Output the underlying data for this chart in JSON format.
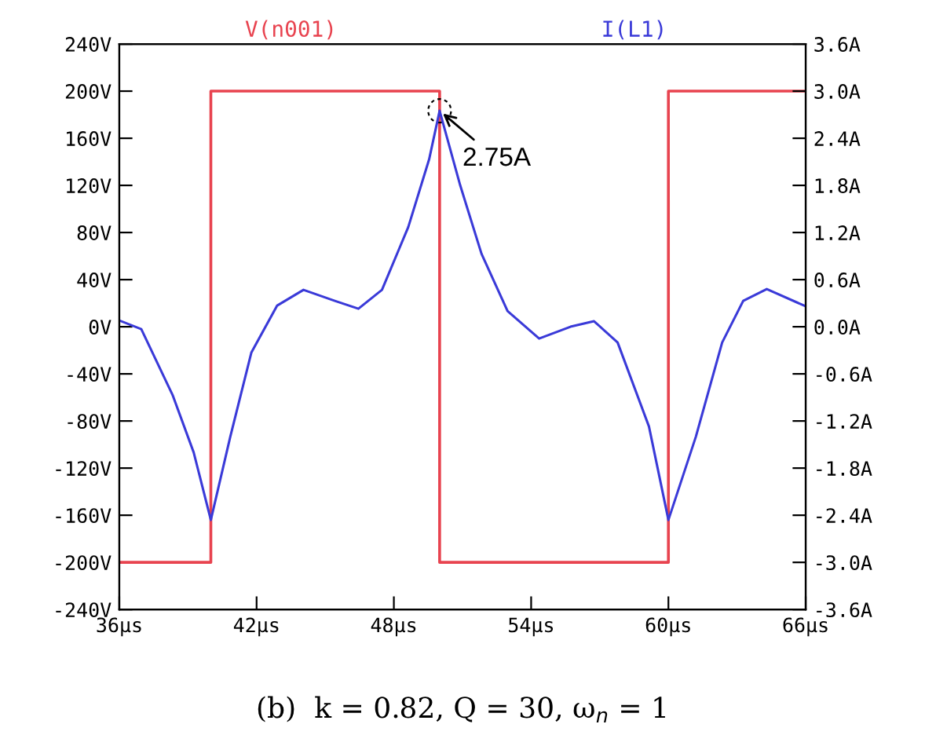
{
  "chart_data": {
    "type": "line",
    "series": [
      {
        "name": "V(n001)",
        "type": "step",
        "color": "#e8434f",
        "x": [
          36,
          40,
          50,
          60,
          66
        ],
        "values": [
          -200,
          200,
          -200,
          200,
          200
        ]
      },
      {
        "name": "I(L1)",
        "type": "line",
        "axis": "y2",
        "color": "#3a3ad8",
        "x": [
          36,
          36.96,
          38.33,
          39.25,
          40,
          40.85,
          41.77,
          42.9,
          44.05,
          45.42,
          46.45,
          47.48,
          48.63,
          49.54,
          50,
          50.9,
          51.83,
          52.97,
          54.35,
          55.72,
          56.75,
          57.78,
          59.15,
          60,
          61.2,
          62.35,
          63.27,
          64.3,
          66
        ],
        "values": [
          0.08,
          -0.03,
          -0.87,
          -1.6,
          -2.46,
          -1.4,
          -0.33,
          0.27,
          0.47,
          0.33,
          0.23,
          0.47,
          1.27,
          2.13,
          2.75,
          1.8,
          0.93,
          0.2,
          -0.15,
          0.0,
          0.07,
          -0.2,
          -1.27,
          -2.46,
          -1.4,
          -0.2,
          0.33,
          0.48,
          0.26
        ]
      }
    ],
    "xlim": [
      36,
      66
    ],
    "xticks": [
      {
        "value": 36,
        "label": "36µs"
      },
      {
        "value": 42,
        "label": "42µs"
      },
      {
        "value": 48,
        "label": "48µs"
      },
      {
        "value": 54,
        "label": "54µs"
      },
      {
        "value": 60,
        "label": "60µs"
      },
      {
        "value": 66,
        "label": "66µs"
      }
    ],
    "ylim": [
      -240,
      240
    ],
    "yticks": [
      {
        "value": -240,
        "label": "-240V"
      },
      {
        "value": -200,
        "label": "-200V"
      },
      {
        "value": -160,
        "label": "-160V"
      },
      {
        "value": -120,
        "label": "-120V"
      },
      {
        "value": -80,
        "label": "-80V"
      },
      {
        "value": -40,
        "label": "-40V"
      },
      {
        "value": 0,
        "label": "0V"
      },
      {
        "value": 40,
        "label": "40V"
      },
      {
        "value": 80,
        "label": "80V"
      },
      {
        "value": 120,
        "label": "120V"
      },
      {
        "value": 160,
        "label": "160V"
      },
      {
        "value": 200,
        "label": "200V"
      },
      {
        "value": 240,
        "label": "240V"
      }
    ],
    "y2lim": [
      -3.6,
      3.6
    ],
    "y2ticks": [
      {
        "value": -3.6,
        "label": "-3.6A"
      },
      {
        "value": -3.0,
        "label": "-3.0A"
      },
      {
        "value": -2.4,
        "label": "-2.4A"
      },
      {
        "value": -1.8,
        "label": "-1.8A"
      },
      {
        "value": -1.2,
        "label": "-1.2A"
      },
      {
        "value": -0.6,
        "label": "-0.6A"
      },
      {
        "value": 0,
        "label": "0.0A"
      },
      {
        "value": 0.6,
        "label": "0.6A"
      },
      {
        "value": 1.2,
        "label": "1.2A"
      },
      {
        "value": 1.8,
        "label": "1.8A"
      },
      {
        "value": 2.4,
        "label": "2.4A"
      },
      {
        "value": 3.0,
        "label": "3.0A"
      },
      {
        "value": 3.6,
        "label": "3.6A"
      }
    ],
    "legend": "top",
    "grid": false,
    "annotations": [
      "2.75A",
      "(b)  k = 0.82, Q = 30, ω$_{n}$ = 1"
    ]
  }
}
